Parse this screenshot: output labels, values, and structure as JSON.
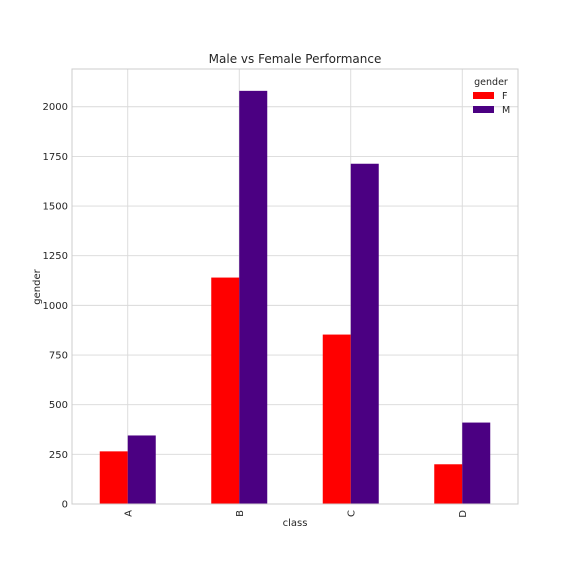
{
  "chart_data": {
    "type": "bar",
    "title": "Male vs Female Performance",
    "xlabel": "class",
    "ylabel": "gender",
    "categories": [
      "A",
      "B",
      "C",
      "D"
    ],
    "series": [
      {
        "name": "F",
        "values": [
          265,
          1140,
          853,
          200
        ],
        "color": "#ff0000"
      },
      {
        "name": "M",
        "values": [
          345,
          2080,
          1713,
          410
        ],
        "color": "#4b0082"
      }
    ],
    "ylim": [
      0,
      2190
    ],
    "yticks": [
      0,
      250,
      500,
      750,
      1000,
      1250,
      1500,
      1750,
      2000
    ],
    "legend": {
      "title": "gender",
      "placement": "top-right"
    },
    "grid": true
  }
}
